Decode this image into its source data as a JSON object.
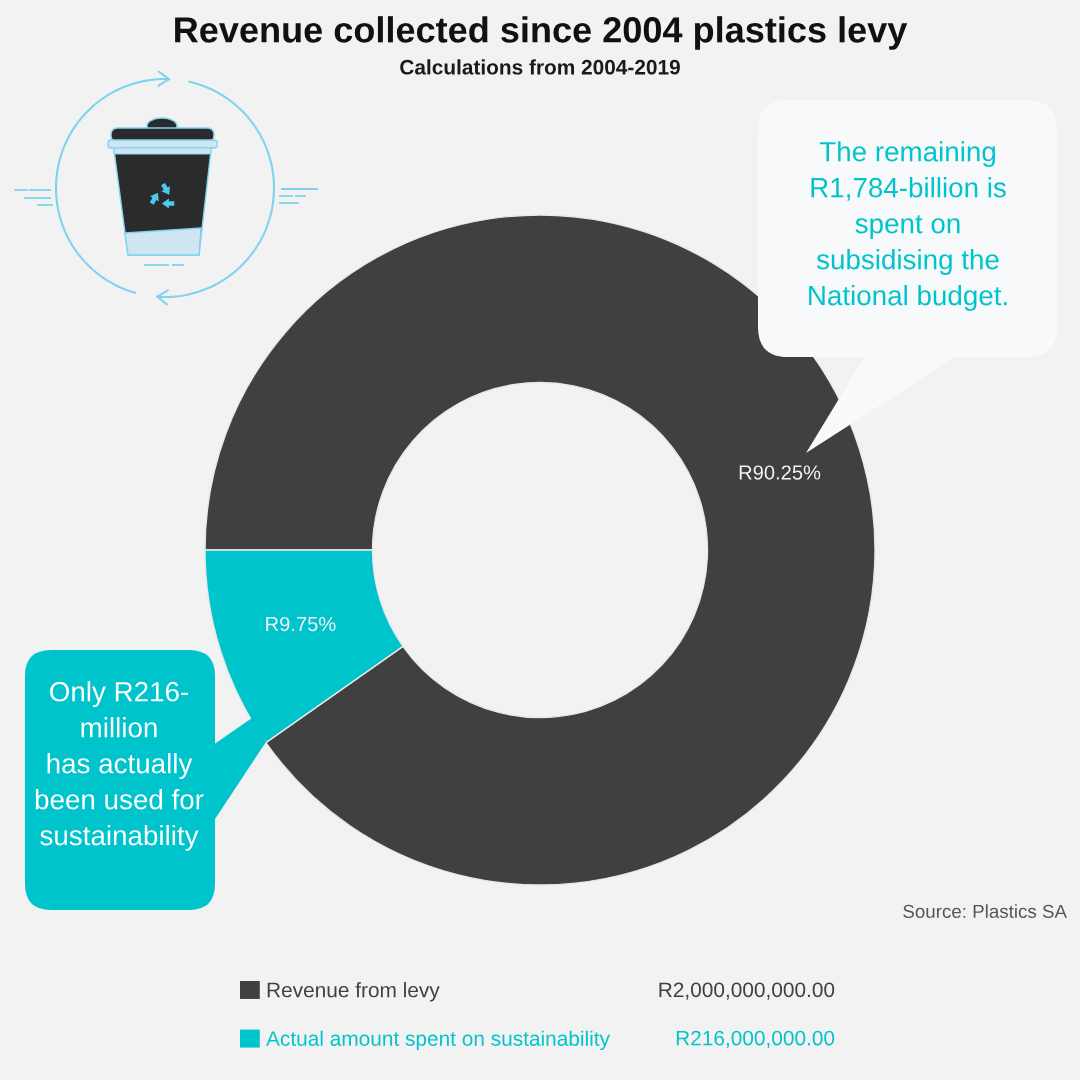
{
  "chart_data": {
    "type": "donut",
    "title": "Revenue collected since 2004 plastics levy",
    "subtitle": "Calculations from 2004-2019",
    "categories": [
      "Revenue from levy",
      "Actual amount spent on sustainability"
    ],
    "values": [
      90.25,
      9.75
    ],
    "colors": [
      "#404040",
      "#00c4cc"
    ],
    "value_labels": [
      "R90.25%",
      "R9.75%"
    ],
    "legend": "bottom",
    "annotations": [
      "The remaining\nR1,784-billion is\nspent on\nsubsidising the\nNational budget.",
      "Only R216-\nmillion\nhas actually\nbeen used for\nsustainability",
      "Source: Plastics SA",
      {
        "text": "R2,000,000,000.00",
        "x": "Revenue from levy"
      },
      {
        "text": "R216,000,000.00",
        "x": "Actual amount spent on sustainability"
      }
    ]
  }
}
